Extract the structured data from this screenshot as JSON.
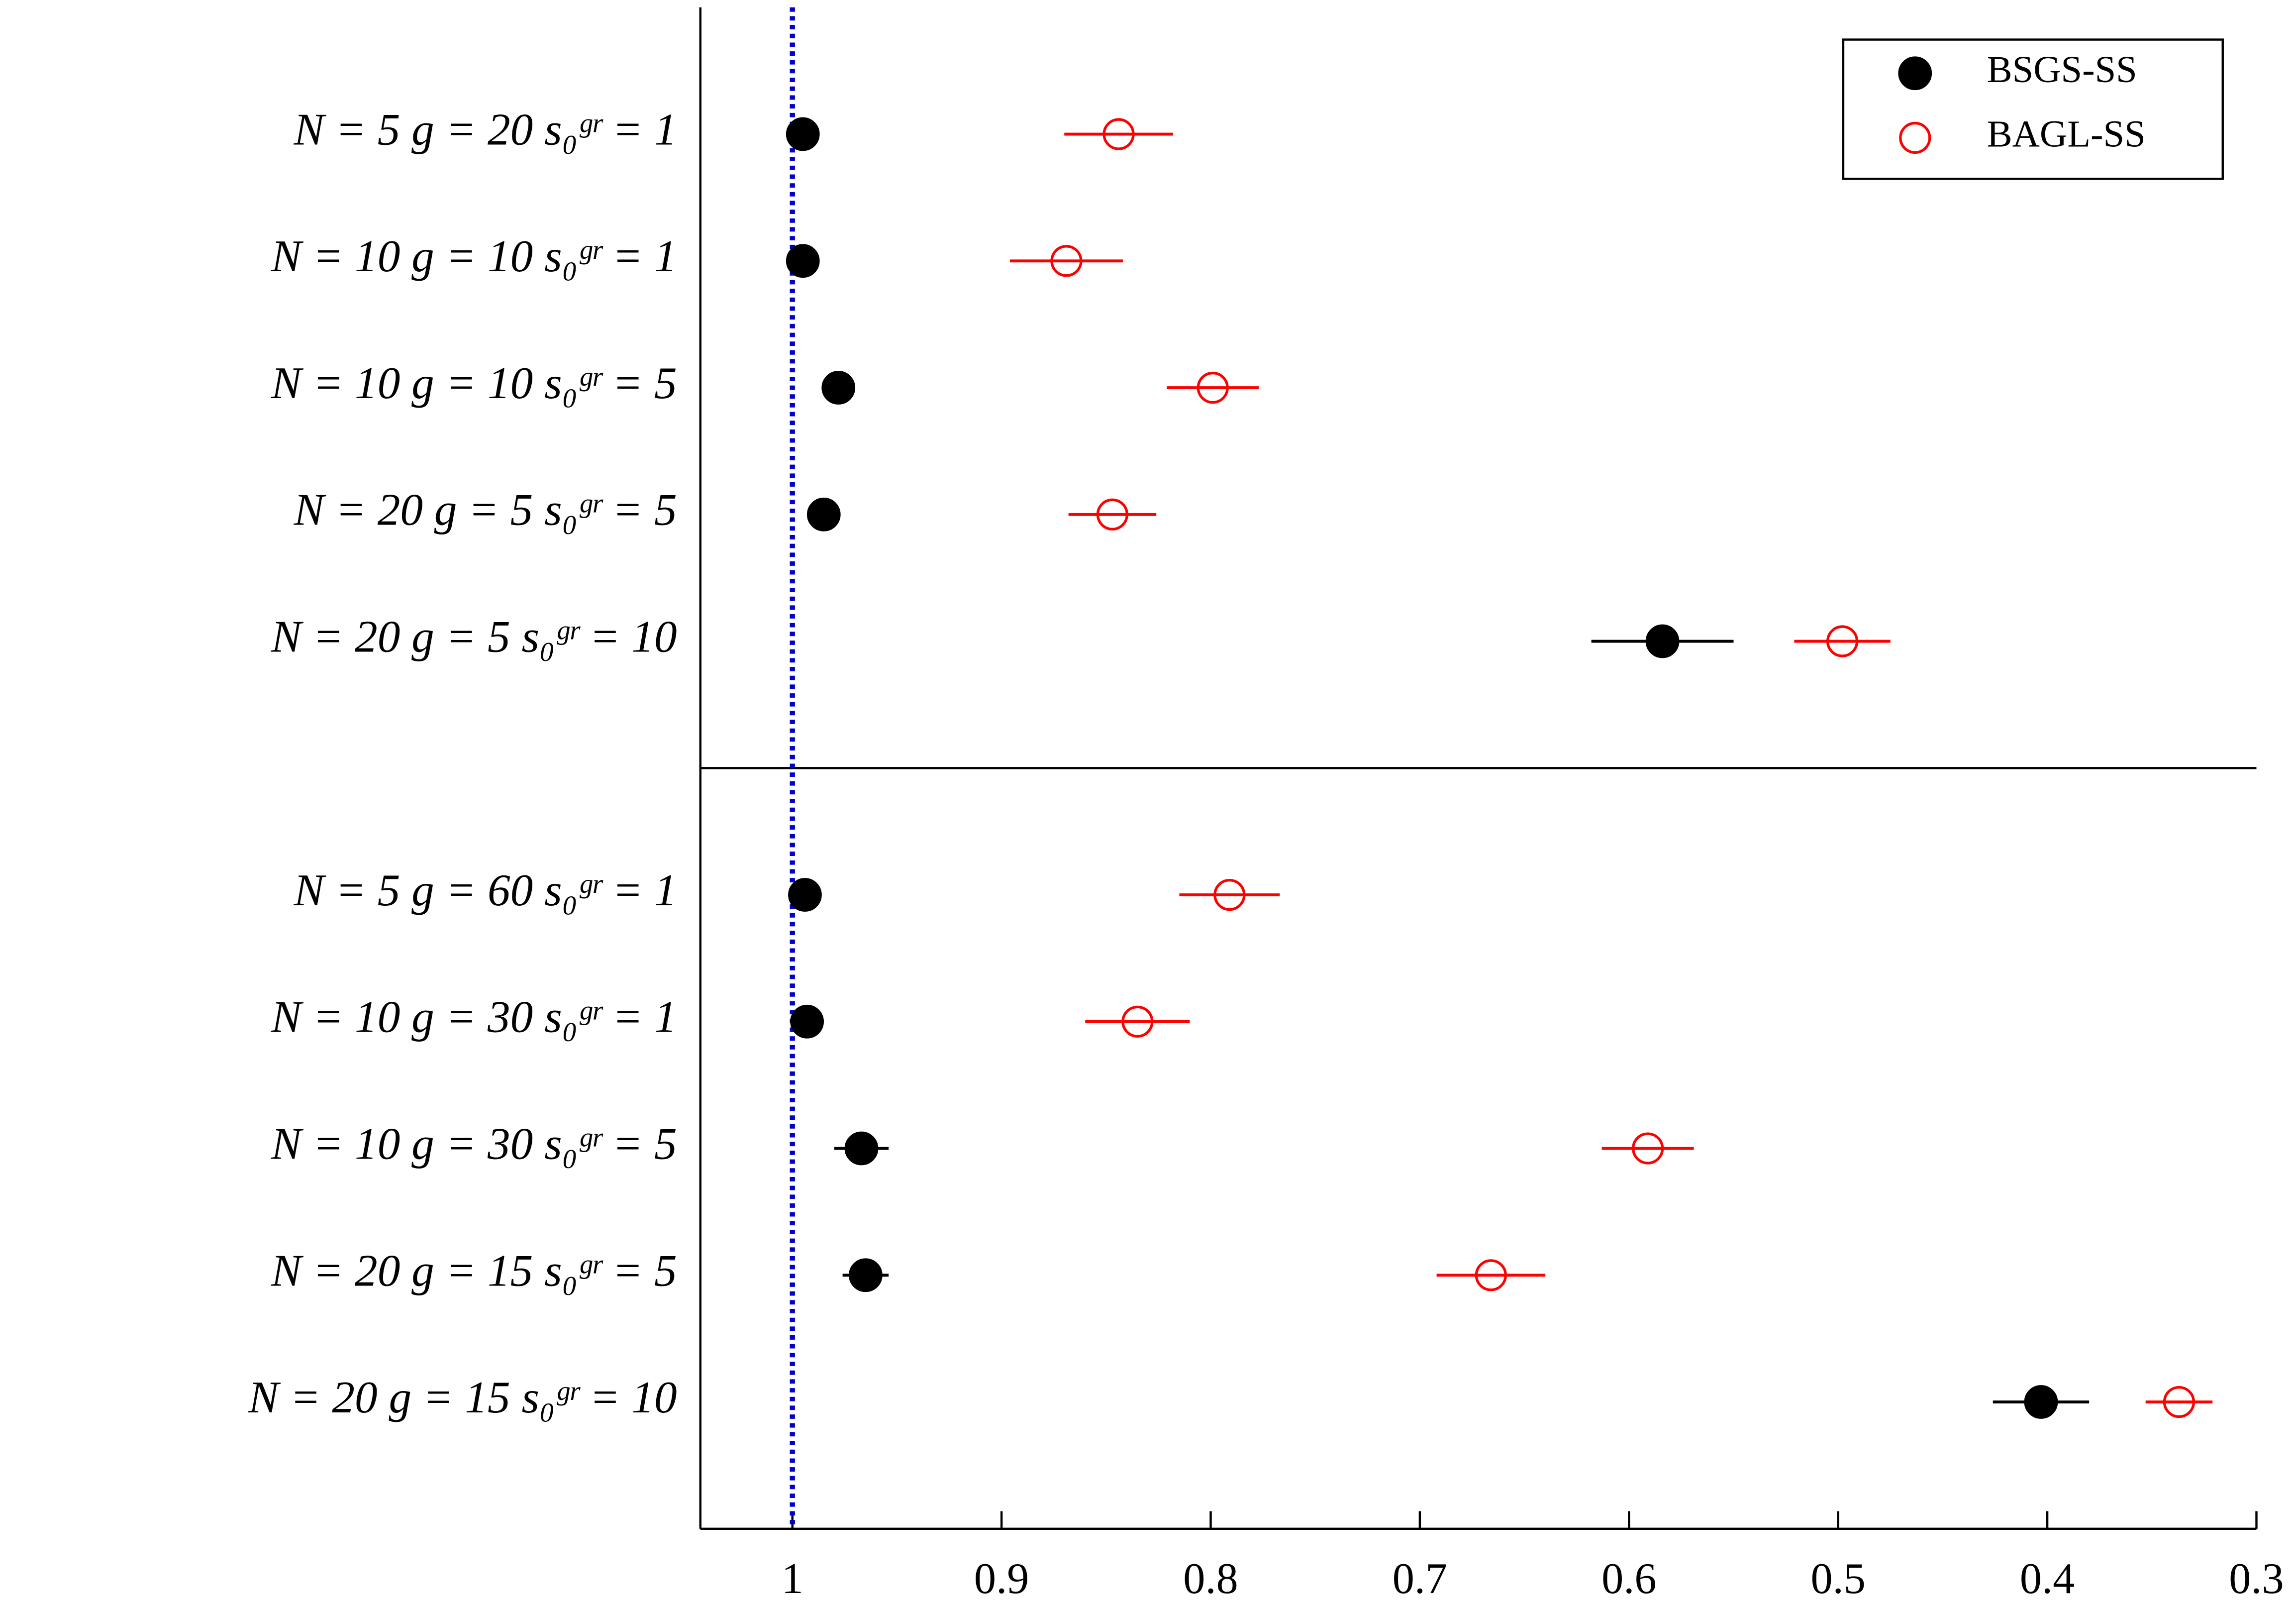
{
  "chart_data": {
    "type": "dot-errorbar",
    "categories": [
      "N = 5   g = 20   s₀ᵍʳ = 1",
      "N = 10   g = 10   s₀ᵍʳ = 1",
      "N = 10   g = 10   s₀ᵍʳ = 5",
      "N = 20   g = 5   s₀ᵍʳ = 5",
      "N = 20   g = 5   s₀ᵍʳ = 10",
      null,
      "N = 5   g = 60   s₀ᵍʳ = 1",
      "N = 10   g = 30   s₀ᵍʳ = 1",
      "N = 10   g = 30   s₀ᵍʳ = 5",
      "N = 20   g = 15   s₀ᵍʳ = 5",
      "N = 20   g = 15   s₀ᵍʳ = 10"
    ],
    "series": [
      {
        "name": "BSGS-SS",
        "color": "#000000",
        "marker": "filled",
        "values": [
          0.995,
          0.995,
          0.978,
          0.985,
          0.584,
          null,
          0.994,
          0.993,
          0.967,
          0.965,
          0.403
        ],
        "errors": [
          0.005,
          0.005,
          0.005,
          0.005,
          0.034,
          null,
          0.005,
          0.005,
          0.013,
          0.011,
          0.023
        ]
      },
      {
        "name": "BAGL-SS",
        "color": "#ff0000",
        "marker": "open",
        "values": [
          0.844,
          0.869,
          0.799,
          0.847,
          0.498,
          null,
          0.791,
          0.835,
          0.591,
          0.666,
          0.337
        ],
        "errors": [
          0.026,
          0.027,
          0.022,
          0.021,
          0.023,
          null,
          0.024,
          0.025,
          0.022,
          0.026,
          0.016
        ]
      }
    ],
    "xlim": [
      1.044,
      0.3
    ],
    "xticks": [
      1,
      0.9,
      0.8,
      0.7,
      0.6,
      0.5,
      0.4,
      0.3
    ],
    "reference_x": 1,
    "reference_color": "#0000cc",
    "legend": "top-right"
  }
}
